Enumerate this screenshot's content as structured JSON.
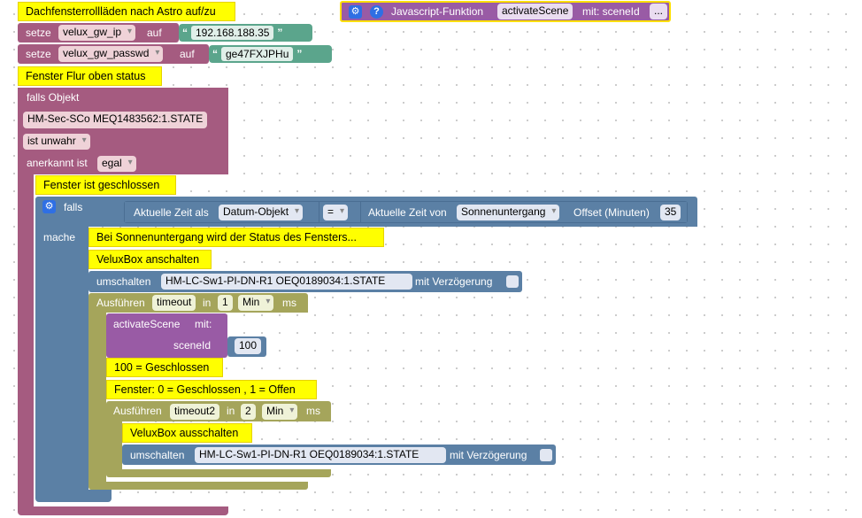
{
  "top_comment": "Dachfensterrollläden nach Astro auf/zu",
  "setze1": {
    "keyword": "setze",
    "var": "velux_gw_ip",
    "auf": "auf",
    "value": "192.168.188.35"
  },
  "setze2": {
    "keyword": "setze",
    "var": "velux_gw_passwd",
    "auf": "auf",
    "value": "ge47FXJPHu"
  },
  "quote_open": "“",
  "quote_close": "”",
  "function_block": {
    "title": "Javascript-Funktion",
    "name": "activateScene",
    "params": "mit: sceneId",
    "more": "..."
  },
  "trigger_comment": "Fenster Flur oben status",
  "trigger": {
    "falls_objekt": "falls Objekt",
    "object_id": "HM-Sec-SCo MEQ1483562:1.STATE",
    "condition": "ist unwahr",
    "anerkannt_label": "anerkannt ist",
    "anerkannt_value": "egal"
  },
  "closed_comment": "Fenster ist geschlossen",
  "if_block": {
    "falls": "falls",
    "mache": "mache",
    "time_label": "Aktuelle Zeit als",
    "time_format": "Datum-Objekt",
    "operator": "=",
    "astro_label": "Aktuelle Zeit von",
    "astro_event": "Sonnenuntergang",
    "offset_label": "Offset (Minuten)",
    "offset_value": "35"
  },
  "comment_sunset": "Bei Sonnenuntergang wird der Status des Fensters...",
  "comment_on": "VeluxBox anschalten",
  "toggle1": {
    "label": "umschalten",
    "object_id": "HM-LC-Sw1-PI-DN-R1 OEQ0189034:1.STATE",
    "delay_label": "mit Verzögerung"
  },
  "timeout1": {
    "label": "Ausführen",
    "name": "timeout",
    "in": "in",
    "value": "1",
    "unit": "Min",
    "ms": "ms"
  },
  "activate": {
    "label": "activateScene",
    "mit": "mit:",
    "param": "sceneId",
    "value": "100"
  },
  "comment_100": "100 = Geschlossen",
  "comment_fenster": "Fenster: 0 = Geschlossen , 1 = Offen",
  "timeout2": {
    "label": "Ausführen",
    "name": "timeout2",
    "in": "in",
    "value": "2",
    "unit": "Min",
    "ms": "ms"
  },
  "comment_off": "VeluxBox ausschalten",
  "toggle2": {
    "label": "umschalten",
    "object_id": "HM-LC-Sw1-PI-DN-R1 OEQ0189034:1.STATE",
    "delay_label": "mit Verzögerung"
  },
  "colors": {
    "trigger": "#a55b80",
    "variable": "#a55b80",
    "logic": "#5b80a5",
    "timeout": "#a5a55b",
    "function": "#995ba5",
    "string": "#5ba58c",
    "comment": "#ffff00"
  }
}
